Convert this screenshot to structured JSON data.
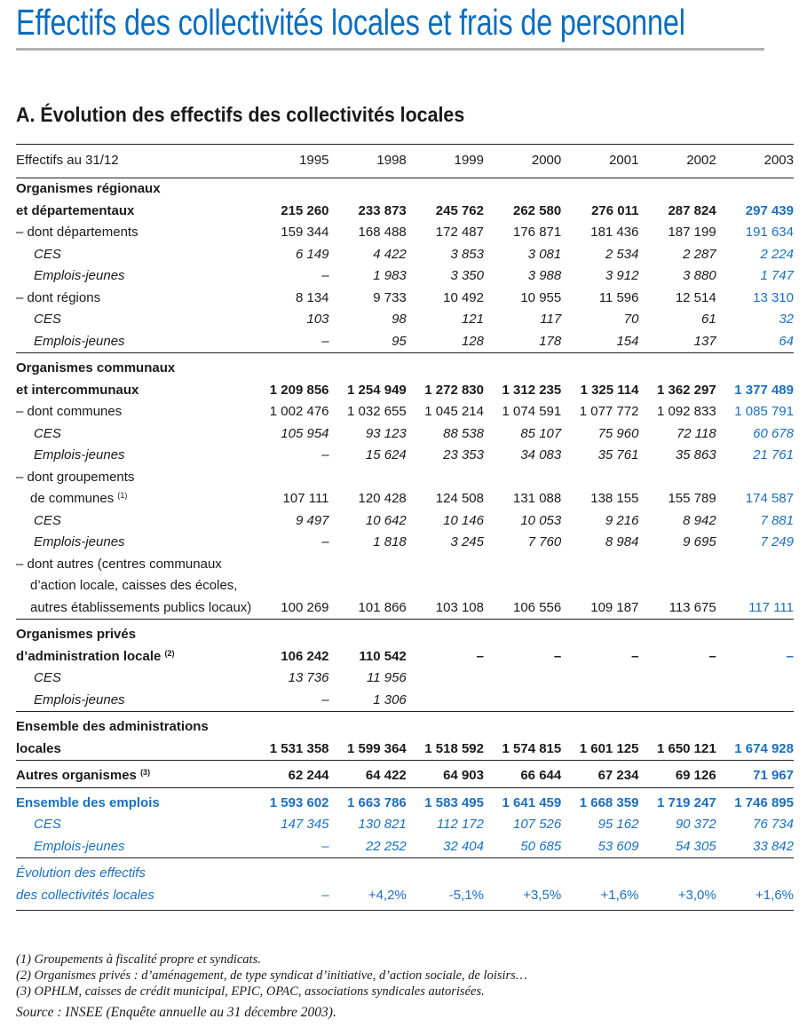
{
  "title": "Effectifs des collectivités locales et frais de personnel",
  "section_heading": "A. Évolution des effectifs des collectivités locales",
  "colors": {
    "accent_blue": "#1a6fc0",
    "title_blue": "#0a6cbf"
  },
  "table": {
    "header_label": "Effectifs au 31/12",
    "years": [
      "1995",
      "1998",
      "1999",
      "2000",
      "2001",
      "2002",
      "2003"
    ],
    "groups": [
      {
        "rows": [
          {
            "kind": "bold",
            "label": [
              "Organismes régionaux",
              "et départementaux"
            ],
            "values": [
              "215 260",
              "233 873",
              "245 762",
              "262 580",
              "276 011",
              "287 824",
              "297 439"
            ]
          },
          {
            "kind": "plain",
            "label": [
              "– dont départements"
            ],
            "values": [
              "159 344",
              "168 488",
              "172 487",
              "176 871",
              "181 436",
              "187 199",
              "191 634"
            ]
          },
          {
            "kind": "italic",
            "label": [
              "CES"
            ],
            "values": [
              "6 149",
              "4 422",
              "3 853",
              "3 081",
              "2 534",
              "2 287",
              "2 224"
            ]
          },
          {
            "kind": "italic",
            "label": [
              "Emplois-jeunes"
            ],
            "values": [
              "–",
              "1 983",
              "3 350",
              "3 988",
              "3 912",
              "3 880",
              "1 747"
            ]
          },
          {
            "kind": "plain",
            "label": [
              "– dont régions"
            ],
            "values": [
              "8 134",
              "9 733",
              "10 492",
              "10 955",
              "11 596",
              "12 514",
              "13 310"
            ]
          },
          {
            "kind": "italic",
            "label": [
              "CES"
            ],
            "values": [
              "103",
              "98",
              "121",
              "117",
              "70",
              "61",
              "32"
            ]
          },
          {
            "kind": "italic",
            "label": [
              "Emplois-jeunes"
            ],
            "values": [
              "–",
              "95",
              "128",
              "178",
              "154",
              "137",
              "64"
            ]
          }
        ]
      },
      {
        "rows": [
          {
            "kind": "bold",
            "label": [
              "Organismes communaux",
              "et intercommunaux"
            ],
            "values": [
              "1 209 856",
              "1 254 949",
              "1 272 830",
              "1 312 235",
              "1 325 114",
              "1 362 297",
              "1 377 489"
            ]
          },
          {
            "kind": "plain",
            "label": [
              "– dont communes"
            ],
            "values": [
              "1 002 476",
              "1 032 655",
              "1 045 214",
              "1 074 591",
              "1 077 772",
              "1 092 833",
              "1 085 791"
            ]
          },
          {
            "kind": "italic",
            "label": [
              "CES"
            ],
            "values": [
              "105 954",
              "93 123",
              "88 538",
              "85 107",
              "75 960",
              "72 118",
              "60 678"
            ]
          },
          {
            "kind": "italic",
            "label": [
              "Emplois-jeunes"
            ],
            "values": [
              "–",
              "15 624",
              "23 353",
              "34 083",
              "35 761",
              "35 863",
              "21 761"
            ]
          },
          {
            "kind": "plain",
            "label": [
              "– dont groupements",
              "de communes"
            ],
            "note": "(1)",
            "values": [
              "107 111",
              "120 428",
              "124 508",
              "131 088",
              "138 155",
              "155 789",
              "174 587"
            ]
          },
          {
            "kind": "italic",
            "label": [
              "CES"
            ],
            "values": [
              "9 497",
              "10 642",
              "10 146",
              "10 053",
              "9 216",
              "8 942",
              "7 881"
            ]
          },
          {
            "kind": "italic",
            "label": [
              "Emplois-jeunes"
            ],
            "values": [
              "–",
              "1 818",
              "3 245",
              "7 760",
              "8 984",
              "9 695",
              "7 249"
            ]
          },
          {
            "kind": "plain",
            "label": [
              "– dont autres (centres communaux",
              "d’action locale, caisses des écoles,",
              "autres établissements publics locaux)"
            ],
            "values": [
              "100 269",
              "101 866",
              "103 108",
              "106 556",
              "109 187",
              "113 675",
              "117 111"
            ]
          }
        ]
      },
      {
        "rows": [
          {
            "kind": "bold",
            "label": [
              "Organismes privés",
              "d’administration locale"
            ],
            "note": "(2)",
            "values": [
              "106 242",
              "110 542",
              "–",
              "–",
              "–",
              "–",
              "–"
            ]
          },
          {
            "kind": "italic",
            "label": [
              "CES"
            ],
            "values": [
              "13 736",
              "11 956",
              "",
              "",
              "",
              "",
              ""
            ]
          },
          {
            "kind": "italic",
            "label": [
              "Emplois-jeunes"
            ],
            "values": [
              "–",
              "1 306",
              "",
              "",
              "",
              "",
              ""
            ]
          }
        ]
      },
      {
        "rows": [
          {
            "kind": "bold",
            "label": [
              "Ensemble des administrations",
              "locales"
            ],
            "values": [
              "1 531 358",
              "1 599 364",
              "1 518 592",
              "1 574 815",
              "1 601 125",
              "1 650 121",
              "1 674 928"
            ]
          }
        ]
      },
      {
        "rows": [
          {
            "kind": "bold",
            "label": [
              "Autres organismes"
            ],
            "note": "(3)",
            "values": [
              "62 244",
              "64 422",
              "64 903",
              "66 644",
              "67 234",
              "69 126",
              "71 967"
            ]
          }
        ]
      },
      {
        "rows": [
          {
            "kind": "bold blue",
            "label": [
              "Ensemble des emplois"
            ],
            "values": [
              "1 593 602",
              "1 663 786",
              "1 583 495",
              "1 641 459",
              "1 668 359",
              "1 719 247",
              "1 746 895"
            ]
          },
          {
            "kind": "italic blue",
            "label": [
              "CES"
            ],
            "values": [
              "147 345",
              "130 821",
              "112 172",
              "107 526",
              "95 162",
              "90 372",
              "76 734"
            ]
          },
          {
            "kind": "italic blue",
            "label": [
              "Emplois-jeunes"
            ],
            "values": [
              "–",
              "22 252",
              "32 404",
              "50 685",
              "53 609",
              "54 305",
              "33 842"
            ]
          }
        ]
      },
      {
        "rows": [
          {
            "kind": "evol blue",
            "label": [
              "Évolution des effectifs",
              "des collectivités locales"
            ],
            "values": [
              "–",
              "+4,2%",
              "-5,1%",
              "+3,5%",
              "+1,6%",
              "+3,0%",
              "+1,6%"
            ]
          }
        ]
      }
    ]
  },
  "footnotes": [
    "(1) Groupements à fiscalité propre et syndicats.",
    "(2) Organismes privés : d’aménagement, de type syndicat d’initiative, d’action sociale, de loisirs…",
    "(3) OPHLM, caisses de crédit municipal, EPIC, OPAC, associations syndicales autorisées."
  ],
  "source": "Source : INSEE (Enquête annuelle au 31 décembre 2003)."
}
